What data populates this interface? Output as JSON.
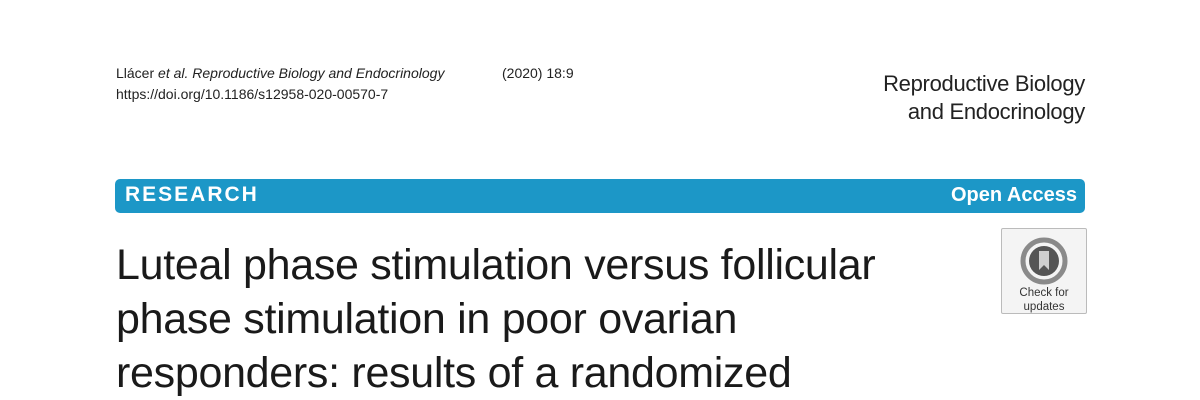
{
  "citation": {
    "authors": "Llácer",
    "etal": "et al.",
    "journal": "Reproductive Biology and Endocrinology",
    "year_volume": "(2020) 18:9",
    "doi": "https://doi.org/10.1186/s12958-020-00570-7"
  },
  "masthead": {
    "line1": "Reproductive Biology",
    "line2": "and Endocrinology"
  },
  "banner": {
    "type": "RESEARCH",
    "access": "Open Access",
    "color": "#1c97c7"
  },
  "title": {
    "line1": "Luteal phase stimulation versus follicular",
    "line2": "phase stimulation in poor ovarian",
    "line3": "responders: results of a randomized"
  },
  "updates_badge": {
    "icon": "check-for-updates-icon",
    "line1": "Check for",
    "line2": "updates"
  }
}
